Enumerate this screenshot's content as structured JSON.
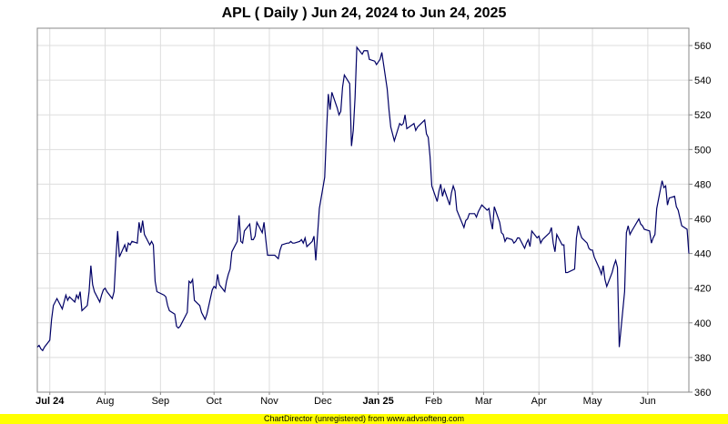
{
  "footer": {
    "text": "ChartDirector (unregistered) from www.advsofteng.com",
    "background": "#ffff00"
  },
  "colors": {
    "line": "#000066",
    "grid": "#dddddd",
    "plot_border": "#888888",
    "background": "#ffffff"
  },
  "chart_data": {
    "type": "line",
    "title": "APL ( Daily ) Jun 24, 2024 to Jun 24, 2025",
    "ylim": [
      360,
      570
    ],
    "y_ticks": [
      360,
      380,
      400,
      420,
      440,
      460,
      480,
      500,
      520,
      540,
      560
    ],
    "y_axis_side": "right",
    "grid": true,
    "x_ticks": [
      {
        "label": "Jul 24",
        "x": "2024-07-01",
        "bold": true
      },
      {
        "label": "Aug",
        "x": "2024-08-01",
        "bold": false
      },
      {
        "label": "Sep",
        "x": "2024-09-01",
        "bold": false
      },
      {
        "label": "Oct",
        "x": "2024-10-01",
        "bold": false
      },
      {
        "label": "Nov",
        "x": "2024-11-01",
        "bold": false
      },
      {
        "label": "Dec",
        "x": "2024-12-01",
        "bold": false
      },
      {
        "label": "Jan 25",
        "x": "2025-01-01",
        "bold": true
      },
      {
        "label": "Feb",
        "x": "2025-02-01",
        "bold": false
      },
      {
        "label": "Mar",
        "x": "2025-03-01",
        "bold": false
      },
      {
        "label": "Apr",
        "x": "2025-04-01",
        "bold": false
      },
      {
        "label": "May",
        "x": "2025-05-01",
        "bold": false
      },
      {
        "label": "Jun",
        "x": "2025-06-01",
        "bold": false
      }
    ],
    "x_range": [
      "2024-06-24",
      "2025-06-24"
    ],
    "series": [
      {
        "x": [
          "2024-06-24",
          "2024-06-25",
          "2024-06-26",
          "2024-06-27",
          "2024-06-28",
          "2024-07-01",
          "2024-07-02",
          "2024-07-03",
          "2024-07-05",
          "2024-07-08",
          "2024-07-09",
          "2024-07-10",
          "2024-07-11",
          "2024-07-12",
          "2024-07-15",
          "2024-07-16",
          "2024-07-17",
          "2024-07-18",
          "2024-07-19",
          "2024-07-22",
          "2024-07-23",
          "2024-07-24",
          "2024-07-25",
          "2024-07-26",
          "2024-07-29",
          "2024-07-30",
          "2024-07-31",
          "2024-08-01",
          "2024-08-02",
          "2024-08-05",
          "2024-08-06",
          "2024-08-07",
          "2024-08-08",
          "2024-08-09",
          "2024-08-12",
          "2024-08-13",
          "2024-08-14",
          "2024-08-15",
          "2024-08-16",
          "2024-08-19",
          "2024-08-20",
          "2024-08-21",
          "2024-08-22",
          "2024-08-23",
          "2024-08-26",
          "2024-08-27",
          "2024-08-28",
          "2024-08-29",
          "2024-08-30",
          "2024-09-03",
          "2024-09-04",
          "2024-09-05",
          "2024-09-06",
          "2024-09-09",
          "2024-09-10",
          "2024-09-11",
          "2024-09-12",
          "2024-09-13",
          "2024-09-16",
          "2024-09-17",
          "2024-09-18",
          "2024-09-19",
          "2024-09-20",
          "2024-09-23",
          "2024-09-24",
          "2024-09-25",
          "2024-09-26",
          "2024-09-27",
          "2024-09-30",
          "2024-10-01",
          "2024-10-02",
          "2024-10-03",
          "2024-10-04",
          "2024-10-07",
          "2024-10-08",
          "2024-10-09",
          "2024-10-10",
          "2024-10-11",
          "2024-10-14",
          "2024-10-15",
          "2024-10-16",
          "2024-10-17",
          "2024-10-18",
          "2024-10-21",
          "2024-10-22",
          "2024-10-23",
          "2024-10-24",
          "2024-10-25",
          "2024-10-28",
          "2024-10-29",
          "2024-10-30",
          "2024-10-31",
          "2024-11-01",
          "2024-11-04",
          "2024-11-05",
          "2024-11-06",
          "2024-11-07",
          "2024-11-08",
          "2024-11-11",
          "2024-11-12",
          "2024-11-13",
          "2024-11-14",
          "2024-11-15",
          "2024-11-18",
          "2024-11-19",
          "2024-11-20",
          "2024-11-21",
          "2024-11-22",
          "2024-11-25",
          "2024-11-26",
          "2024-11-27",
          "2024-11-29",
          "2024-12-02",
          "2024-12-03",
          "2024-12-04",
          "2024-12-05",
          "2024-12-06",
          "2024-12-09",
          "2024-12-10",
          "2024-12-11",
          "2024-12-12",
          "2024-12-13",
          "2024-12-16",
          "2024-12-17",
          "2024-12-18",
          "2024-12-19",
          "2024-12-20",
          "2024-12-23",
          "2024-12-24",
          "2024-12-26",
          "2024-12-27",
          "2024-12-30",
          "2024-12-31",
          "2025-01-02",
          "2025-01-03",
          "2025-01-06",
          "2025-01-07",
          "2025-01-08",
          "2025-01-10",
          "2025-01-13",
          "2025-01-14",
          "2025-01-15",
          "2025-01-16",
          "2025-01-17",
          "2025-01-21",
          "2025-01-22",
          "2025-01-23",
          "2025-01-24",
          "2025-01-27",
          "2025-01-28",
          "2025-01-29",
          "2025-01-30",
          "2025-01-31",
          "2025-02-03",
          "2025-02-04",
          "2025-02-05",
          "2025-02-06",
          "2025-02-07",
          "2025-02-10",
          "2025-02-11",
          "2025-02-12",
          "2025-02-13",
          "2025-02-14",
          "2025-02-18",
          "2025-02-19",
          "2025-02-20",
          "2025-02-21",
          "2025-02-24",
          "2025-02-25",
          "2025-02-26",
          "2025-02-27",
          "2025-02-28",
          "2025-03-03",
          "2025-03-04",
          "2025-03-05",
          "2025-03-06",
          "2025-03-07",
          "2025-03-10",
          "2025-03-11",
          "2025-03-12",
          "2025-03-13",
          "2025-03-14",
          "2025-03-17",
          "2025-03-18",
          "2025-03-19",
          "2025-03-20",
          "2025-03-21",
          "2025-03-24",
          "2025-03-25",
          "2025-03-26",
          "2025-03-27",
          "2025-03-28",
          "2025-03-31",
          "2025-04-01",
          "2025-04-02",
          "2025-04-03",
          "2025-04-04",
          "2025-04-07",
          "2025-04-08",
          "2025-04-09",
          "2025-04-10",
          "2025-04-11",
          "2025-04-14",
          "2025-04-15",
          "2025-04-16",
          "2025-04-17",
          "2025-04-21",
          "2025-04-22",
          "2025-04-23",
          "2025-04-24",
          "2025-04-25",
          "2025-04-28",
          "2025-04-29",
          "2025-04-30",
          "2025-05-01",
          "2025-05-02",
          "2025-05-05",
          "2025-05-06",
          "2025-05-07",
          "2025-05-08",
          "2025-05-09",
          "2025-05-12",
          "2025-05-13",
          "2025-05-14",
          "2025-05-15",
          "2025-05-16",
          "2025-05-19",
          "2025-05-20",
          "2025-05-21",
          "2025-05-22",
          "2025-05-23",
          "2025-05-27",
          "2025-05-28",
          "2025-05-29",
          "2025-05-30",
          "2025-06-02",
          "2025-06-03",
          "2025-06-04",
          "2025-06-05",
          "2025-06-06",
          "2025-06-09",
          "2025-06-10",
          "2025-06-11",
          "2025-06-12",
          "2025-06-13",
          "2025-06-16",
          "2025-06-17",
          "2025-06-18",
          "2025-06-20",
          "2025-06-23",
          "2025-06-24"
        ],
        "values": [
          386,
          387,
          385,
          384,
          386,
          390,
          402,
          410,
          414,
          408,
          412,
          416,
          413,
          415,
          412,
          416,
          414,
          418,
          407,
          410,
          418,
          433,
          422,
          418,
          412,
          416,
          419,
          420,
          418,
          414,
          418,
          437,
          453,
          438,
          445,
          441,
          446,
          445,
          447,
          446,
          458,
          452,
          459,
          451,
          445,
          447,
          445,
          424,
          418,
          416,
          415,
          410,
          407,
          405,
          398,
          397,
          398,
          400,
          406,
          424,
          423,
          425,
          413,
          410,
          406,
          404,
          402,
          405,
          419,
          421,
          420,
          428,
          422,
          418,
          424,
          428,
          431,
          441,
          447,
          462,
          447,
          446,
          453,
          457,
          448,
          448,
          450,
          458,
          452,
          458,
          448,
          439,
          439,
          439,
          438,
          437,
          442,
          445,
          446,
          446,
          447,
          446,
          446,
          447,
          448,
          446,
          449,
          444,
          447,
          450,
          436,
          466,
          484,
          510,
          532,
          523,
          533,
          524,
          520,
          522,
          536,
          543,
          538,
          502,
          511,
          530,
          559,
          555,
          557,
          557,
          552,
          551,
          549,
          552,
          556,
          535,
          523,
          513,
          505,
          515,
          514,
          515,
          520,
          512,
          515,
          511,
          513,
          514,
          517,
          509,
          507,
          496,
          479,
          470,
          476,
          480,
          473,
          477,
          468,
          475,
          479,
          476,
          465,
          455,
          459,
          460,
          463,
          463,
          461,
          464,
          466,
          468,
          465,
          466,
          459,
          454,
          467,
          458,
          452,
          451,
          447,
          449,
          448,
          446,
          447,
          449,
          449,
          443,
          446,
          448,
          444,
          453,
          449,
          450,
          446,
          448,
          449,
          452,
          455,
          446,
          441,
          451,
          445,
          445,
          429,
          429,
          431,
          449,
          456,
          452,
          449,
          446,
          443,
          442,
          442,
          438,
          431,
          428,
          433,
          425,
          421,
          429,
          433,
          436,
          432,
          386,
          418,
          452,
          456,
          451,
          453,
          460,
          457,
          456,
          454,
          453,
          446,
          449,
          451,
          466,
          482,
          478,
          479,
          468,
          472,
          473,
          467,
          465,
          456,
          454,
          440
        ]
      }
    ]
  }
}
